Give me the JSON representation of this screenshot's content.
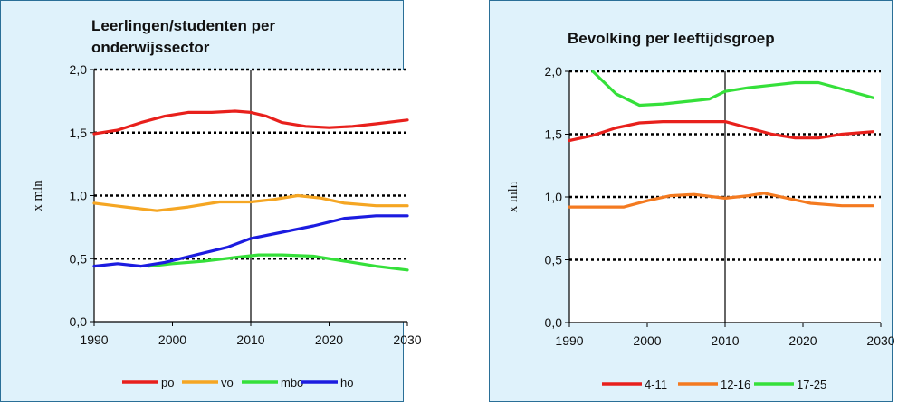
{
  "chart_data": [
    {
      "type": "line",
      "title": "Leerlingen/studenten per onderwijssector",
      "ylabel": "x mln",
      "xlabel": "",
      "xlim": [
        1990,
        2030
      ],
      "ylim": [
        0.0,
        2.0
      ],
      "x_ticks": [
        "1990",
        "2000",
        "2010",
        "2020",
        "2030"
      ],
      "y_ticks": [
        "0,0",
        "0,5",
        "1,0",
        "1,5",
        "2,0"
      ],
      "dotted_gridlines": [
        0.5,
        1.0,
        1.5,
        2.0
      ],
      "vertical_marker": 2010,
      "legend_position": "bottom",
      "series": [
        {
          "name": "po",
          "color": "#e8201c",
          "points": [
            [
              1990,
              1.49
            ],
            [
              1993,
              1.52
            ],
            [
              1996,
              1.58
            ],
            [
              1999,
              1.63
            ],
            [
              2002,
              1.66
            ],
            [
              2005,
              1.66
            ],
            [
              2008,
              1.67
            ],
            [
              2010,
              1.66
            ],
            [
              2012,
              1.63
            ],
            [
              2014,
              1.58
            ],
            [
              2017,
              1.55
            ],
            [
              2020,
              1.54
            ],
            [
              2023,
              1.55
            ],
            [
              2026,
              1.57
            ],
            [
              2030,
              1.6
            ]
          ]
        },
        {
          "name": "vo",
          "color": "#f5a623",
          "points": [
            [
              1990,
              0.94
            ],
            [
              1994,
              0.91
            ],
            [
              1998,
              0.88
            ],
            [
              2002,
              0.91
            ],
            [
              2006,
              0.95
            ],
            [
              2010,
              0.95
            ],
            [
              2013,
              0.97
            ],
            [
              2016,
              1.0
            ],
            [
              2019,
              0.98
            ],
            [
              2022,
              0.94
            ],
            [
              2026,
              0.92
            ],
            [
              2030,
              0.92
            ]
          ]
        },
        {
          "name": "mbo",
          "color": "#35e03a",
          "points": [
            [
              1997,
              0.44
            ],
            [
              2000,
              0.46
            ],
            [
              2004,
              0.48
            ],
            [
              2008,
              0.51
            ],
            [
              2011,
              0.53
            ],
            [
              2014,
              0.53
            ],
            [
              2018,
              0.52
            ],
            [
              2022,
              0.48
            ],
            [
              2026,
              0.44
            ],
            [
              2030,
              0.41
            ]
          ]
        },
        {
          "name": "ho",
          "color": "#1c1ce0",
          "points": [
            [
              1990,
              0.44
            ],
            [
              1993,
              0.46
            ],
            [
              1996,
              0.44
            ],
            [
              1999,
              0.47
            ],
            [
              2003,
              0.53
            ],
            [
              2007,
              0.59
            ],
            [
              2010,
              0.66
            ],
            [
              2014,
              0.71
            ],
            [
              2018,
              0.76
            ],
            [
              2022,
              0.82
            ],
            [
              2026,
              0.84
            ],
            [
              2030,
              0.84
            ]
          ]
        }
      ]
    },
    {
      "type": "line",
      "title": "Bevolking per leeftijdsgroep",
      "ylabel": "x mln",
      "xlabel": "",
      "xlim": [
        1990,
        2030
      ],
      "ylim": [
        0.0,
        2.0
      ],
      "x_ticks": [
        "1990",
        "2000",
        "2010",
        "2020",
        "2030"
      ],
      "y_ticks": [
        "0,0",
        "0,5",
        "1,0",
        "1,5",
        "2,0"
      ],
      "dotted_gridlines": [
        0.5,
        1.0,
        1.5,
        2.0
      ],
      "vertical_marker": 2010,
      "legend_position": "bottom",
      "series": [
        {
          "name": "4-11",
          "color": "#e8201c",
          "points": [
            [
              1990,
              1.45
            ],
            [
              1993,
              1.49
            ],
            [
              1996,
              1.55
            ],
            [
              1999,
              1.59
            ],
            [
              2002,
              1.6
            ],
            [
              2006,
              1.6
            ],
            [
              2010,
              1.6
            ],
            [
              2013,
              1.55
            ],
            [
              2016,
              1.5
            ],
            [
              2019,
              1.47
            ],
            [
              2022,
              1.47
            ],
            [
              2025,
              1.5
            ],
            [
              2029,
              1.52
            ]
          ]
        },
        {
          "name": "12-16",
          "color": "#f47a20",
          "points": [
            [
              1990,
              0.92
            ],
            [
              1994,
              0.92
            ],
            [
              1997,
              0.92
            ],
            [
              2000,
              0.97
            ],
            [
              2003,
              1.01
            ],
            [
              2006,
              1.02
            ],
            [
              2010,
              0.99
            ],
            [
              2013,
              1.01
            ],
            [
              2015,
              1.03
            ],
            [
              2018,
              0.99
            ],
            [
              2021,
              0.95
            ],
            [
              2025,
              0.93
            ],
            [
              2029,
              0.93
            ]
          ]
        },
        {
          "name": "17-25",
          "color": "#35e03a",
          "points": [
            [
              1993,
              2.0
            ],
            [
              1996,
              1.82
            ],
            [
              1999,
              1.73
            ],
            [
              2002,
              1.74
            ],
            [
              2005,
              1.76
            ],
            [
              2008,
              1.78
            ],
            [
              2010,
              1.84
            ],
            [
              2013,
              1.87
            ],
            [
              2016,
              1.89
            ],
            [
              2019,
              1.91
            ],
            [
              2022,
              1.91
            ],
            [
              2025,
              1.86
            ],
            [
              2029,
              1.79
            ]
          ]
        }
      ]
    }
  ]
}
